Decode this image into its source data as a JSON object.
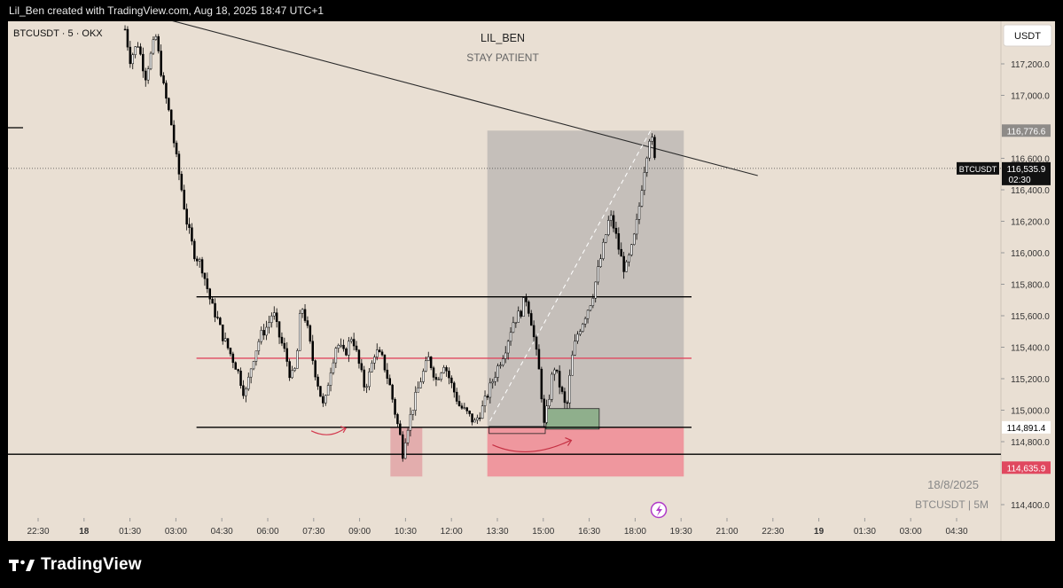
{
  "header": {
    "attribution": "Lil_Ben created with TradingView.com, Aug 18, 2025 18:47 UTC+1"
  },
  "chart": {
    "symbol_label": "BTCUSDT · 5 · OKX",
    "author": "LIL_BEN",
    "note": "STAY PATIENT",
    "currency": "USDT",
    "watermark_date": "18/8/2025",
    "watermark_symbol": "BTCUSDT | 5M"
  },
  "footer": {
    "brand": "TradingView"
  },
  "colors": {
    "background": "#e9dfd3",
    "candle": "#000000",
    "red_level": "#e0485f",
    "position_zone": "#b7b3b0",
    "stop_zone": "#ef8f98",
    "entry_box": "#8faf8c"
  },
  "chart_data": {
    "type": "candlestick",
    "x_tick_labels": [
      "22:30",
      "18",
      "01:30",
      "03:00",
      "04:30",
      "06:00",
      "07:30",
      "09:00",
      "10:30",
      "12:00",
      "13:30",
      "15:00",
      "16:30",
      "18:00",
      "19:30",
      "21:00",
      "22:30",
      "19",
      "01:30",
      "03:00",
      "04:30"
    ],
    "y_tick_labels": [
      "117,200.0",
      "117,000.0",
      "116,600.0",
      "116,400.0",
      "116,200.0",
      "116,000.0",
      "115,800.0",
      "115,600.0",
      "115,400.0",
      "115,200.0",
      "115,000.0",
      "114,800.0",
      "114,400.0"
    ],
    "y_range": [
      114300,
      117420
    ],
    "last_price": {
      "label": "BTCUSDT",
      "value": "116,535.9",
      "countdown": "02:30"
    },
    "price_badges": [
      {
        "value": "116,776.6",
        "role": "target"
      },
      {
        "value": "114,891.4",
        "role": "entry"
      },
      {
        "value": "114,635.9",
        "role": "stop"
      }
    ],
    "horizontal_levels": [
      {
        "price": 115720,
        "color": "#000000"
      },
      {
        "price": 115330,
        "color": "#e0485f"
      },
      {
        "price": 114891,
        "color": "#000000"
      },
      {
        "price": 114720,
        "color": "#000000"
      }
    ],
    "trendline": {
      "from": [
        "00:25",
        117600
      ],
      "to": [
        "22:00",
        116490
      ]
    },
    "long_position": {
      "start": "13:10",
      "end": "19:35",
      "entry": 114891,
      "target": 116776,
      "stop": 114635
    },
    "path": [
      [
        "01:20",
        117420
      ],
      [
        "01:30",
        117230
      ],
      [
        "01:45",
        117330
      ],
      [
        "02:00",
        117120
      ],
      [
        "02:20",
        117380
      ],
      [
        "02:35",
        117060
      ],
      [
        "02:50",
        116830
      ],
      [
        "03:00",
        116610
      ],
      [
        "03:10",
        116420
      ],
      [
        "03:20",
        116210
      ],
      [
        "03:35",
        116000
      ],
      [
        "03:50",
        115920
      ],
      [
        "04:00",
        115790
      ],
      [
        "04:10",
        115660
      ],
      [
        "04:20",
        115590
      ],
      [
        "04:30",
        115480
      ],
      [
        "04:45",
        115370
      ],
      [
        "05:00",
        115260
      ],
      [
        "05:15",
        115090
      ],
      [
        "05:30",
        115320
      ],
      [
        "05:45",
        115470
      ],
      [
        "06:00",
        115540
      ],
      [
        "06:10",
        115630
      ],
      [
        "06:20",
        115490
      ],
      [
        "06:35",
        115350
      ],
      [
        "06:45",
        115200
      ],
      [
        "06:55",
        115270
      ],
      [
        "07:05",
        115680
      ],
      [
        "07:15",
        115560
      ],
      [
        "07:30",
        115280
      ],
      [
        "07:40",
        115140
      ],
      [
        "07:50",
        115000
      ],
      [
        "08:00",
        115220
      ],
      [
        "08:15",
        115430
      ],
      [
        "08:30",
        115350
      ],
      [
        "08:45",
        115480
      ],
      [
        "09:00",
        115270
      ],
      [
        "09:10",
        115140
      ],
      [
        "09:20",
        115240
      ],
      [
        "09:30",
        115380
      ],
      [
        "09:45",
        115320
      ],
      [
        "10:00",
        115140
      ],
      [
        "10:10",
        114970
      ],
      [
        "10:20",
        114820
      ],
      [
        "10:25",
        114710
      ],
      [
        "10:30",
        114850
      ],
      [
        "10:45",
        115030
      ],
      [
        "11:00",
        115200
      ],
      [
        "11:15",
        115330
      ],
      [
        "11:30",
        115190
      ],
      [
        "11:45",
        115300
      ],
      [
        "12:00",
        115160
      ],
      [
        "12:15",
        115030
      ],
      [
        "12:30",
        114980
      ],
      [
        "12:45",
        114920
      ],
      [
        "13:00",
        115010
      ],
      [
        "13:15",
        115140
      ],
      [
        "13:30",
        115270
      ],
      [
        "13:45",
        115390
      ],
      [
        "14:00",
        115560
      ],
      [
        "14:15",
        115620
      ],
      [
        "14:25",
        115720
      ],
      [
        "14:35",
        115590
      ],
      [
        "14:45",
        115380
      ],
      [
        "14:55",
        115170
      ],
      [
        "15:00",
        114880
      ],
      [
        "15:10",
        115060
      ],
      [
        "15:20",
        115290
      ],
      [
        "15:35",
        115120
      ],
      [
        "15:45",
        114990
      ],
      [
        "15:55",
        115310
      ],
      [
        "16:05",
        115470
      ],
      [
        "16:20",
        115590
      ],
      [
        "16:35",
        115710
      ],
      [
        "16:50",
        115930
      ],
      [
        "17:00",
        116080
      ],
      [
        "17:10",
        116240
      ],
      [
        "17:20",
        116140
      ],
      [
        "17:30",
        115990
      ],
      [
        "17:40",
        115880
      ],
      [
        "17:55",
        116050
      ],
      [
        "18:05",
        116230
      ],
      [
        "18:15",
        116480
      ],
      [
        "18:25",
        116680
      ],
      [
        "18:30",
        116776
      ],
      [
        "18:40",
        116536
      ]
    ]
  }
}
